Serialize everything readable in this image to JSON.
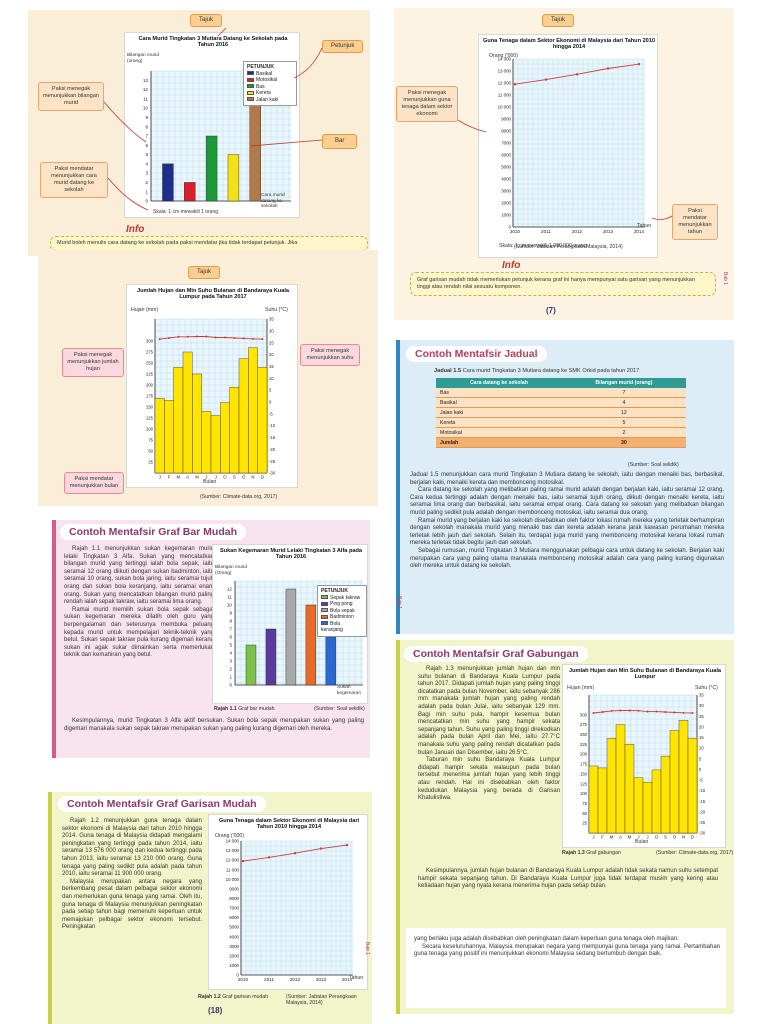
{
  "panel1": {
    "tag_top": "Tajuk",
    "tag_petunjuk": "Petunjuk",
    "tag_bar": "Bar",
    "tag_paksi_y": "Paksi menegak menunjukkan bilangan murid",
    "tag_paksi_x": "Paksi mendatar menunjukkan cara murid datang ke sekolah",
    "info_logo": "Info",
    "info_text": "Murid boleh menulis cara datang ke sekolah pada paksi mendatar jika tidak terdapat petunjuk. Jika",
    "chart_data": {
      "type": "bar",
      "title": "Cara Murid Tingkatan 3 Mutiara Datang ke Sekolah pada Tahun 2016",
      "ylabel": "Bilangan murid (orang)",
      "xlabel": "Cara murid datang ke sekolah",
      "ylim": [
        0,
        14
      ],
      "yticks": [
        "0",
        "1",
        "2",
        "3",
        "4",
        "5",
        "6",
        "7",
        "8",
        "9",
        "10",
        "11",
        "12",
        "13"
      ],
      "legend_title": "PETUNJUK",
      "categories": [
        "Basikal",
        "Motosikal",
        "Bas",
        "Kereta",
        "Jalan kaki"
      ],
      "values": [
        4,
        2,
        7,
        5,
        12
      ],
      "colors": [
        "#1d2f8a",
        "#d8202a",
        "#1f9a3a",
        "#f2e01a",
        "#b07a4a"
      ],
      "scale": "Skala: 1 cm mewakili 1 orang"
    }
  },
  "panel2": {
    "tag_top": "Tajuk",
    "tag_paksi_y": "Paksi menegak menunjukkan guna tenaga dalam sektor ekonomi",
    "tag_paksi_x": "Paksi mendatar menunjukkan tahun",
    "source": "(Sumber: Jabatan Perangkaan Malaysia, 2014)",
    "info_logo": "Info",
    "info_text": "Graf garisan mudah tidak memerlukan petunjuk kerana graf ini hanya mempunyai satu garisan yang menunjukkan tinggi atau rendah nilai sesuatu komponen.",
    "page_number": "7",
    "bab": "Bab 1",
    "chart_data": {
      "type": "line",
      "title": "Guna Tenaga dalam Sektor Ekonomi di Malaysia dari Tahun 2010 hingga 2014",
      "ylabel": "Orang ('000)",
      "xlabel": "Tahun",
      "x": [
        "2010",
        "2011",
        "2012",
        "2013",
        "2014"
      ],
      "values": [
        11900,
        12284,
        12723,
        13210,
        13576
      ],
      "ylim": [
        0,
        14000
      ],
      "yticks": [
        "0",
        "1000",
        "2000",
        "3000",
        "4000",
        "5000",
        "6000",
        "7000",
        "8000",
        "9000",
        "10 000",
        "11 000",
        "12 000",
        "13 000",
        "14 000"
      ],
      "scale": "Skala: 1 cm mewakili 1 000 000 orang"
    }
  },
  "panel3": {
    "tag_top": "Tajuk",
    "tag_left": "Paksi menegak menunjukkan jumlah hujan",
    "tag_right": "Paksi menegak menunjukkan suhu",
    "tag_bottom": "Paksi mendatar menunjukkan bulan",
    "source": "(Sumber: Climate-data.org, 2017)",
    "chart_data": {
      "type": "bar",
      "title": "Jumlah Hujan dan Min Suhu Bulanan di Bandaraya Kuala Lumpur pada Tahun 2017",
      "ylabel": "Hujan (mm)",
      "y2label": "Suhu (°C)",
      "xlabel": "Bulan",
      "categories": [
        "J",
        "F",
        "M",
        "A",
        "M",
        "J",
        "J",
        "O",
        "S",
        "O",
        "N",
        "D"
      ],
      "rain": [
        170,
        165,
        240,
        275,
        225,
        140,
        130,
        160,
        195,
        260,
        285,
        240
      ],
      "temperature": [
        26.5,
        27.0,
        27.5,
        27.5,
        27.6,
        27.6,
        27.2,
        27.2,
        27.0,
        26.8,
        26.6,
        26.5
      ],
      "ylim": [
        0,
        350
      ],
      "y2lim": [
        -30,
        35
      ],
      "yticks": [
        "25",
        "50",
        "75",
        "100",
        "125",
        "150",
        "175",
        "200",
        "225",
        "250",
        "275",
        "300"
      ],
      "y2ticks": [
        "35",
        "30",
        "25",
        "20",
        "15",
        "10",
        "5",
        "0",
        "-5",
        "-10",
        "-15",
        "-20",
        "-25",
        "-30"
      ]
    }
  },
  "panel4": {
    "heading": "Contoh Mentafsir Jadual",
    "table_title_label": "Jadual 1.5",
    "table_title": "Cara murid Tingkatan 3 Mutiara datang ke SMK Orkid pada tahun 2017",
    "col1": "Cara datang ke sekolah",
    "col2": "Bilangan murid (orang)",
    "rows": [
      {
        "a": "Bas",
        "b": "7"
      },
      {
        "a": "Basikal",
        "b": "4"
      },
      {
        "a": "Jalan kaki",
        "b": "12"
      },
      {
        "a": "Kereta",
        "b": "5"
      },
      {
        "a": "Motosikal",
        "b": "2"
      }
    ],
    "total_label": "Jumlah",
    "total_value": "30",
    "source": "(Sumber: Soal selidik)",
    "paragraphs": [
      "Jadual 1.5 menunjukkan cara murid Tingkatan 3 Mutiara datang ke sekolah, iaitu dengan menaiki bas, berbasikal, berjalan kaki, menaiki kereta dan membonceng motosikal.",
      "Cara datang ke sekolah yang melibatkan paling ramai murid adalah dengan berjalan kaki, iaitu seramai 12 orang. Cara kedua tertinggi adalah dengan menaiki bas, iaitu seramai tujuh orang, diikuti dengan menaiki kereta, iaitu seramai lima orang dan berbasikal, iaitu seramai empat orang. Cara datang ke sekolah yang melibatkan bilangan murid paling sedikit pula adalah dengan membonceng motosikal, iaitu seramai dua orang.",
      "Ramai murid yang berjalan kaki ke sekolah disebabkan oleh faktor lokasi rumah mereka yang terletak berhampiran dengan sekolah manakala murid yang menaiki bas dan kereta adalah kerana jarak kawasan perumahan mereka terletak lebih jauh dari sekolah. Selain itu, terdapat juga murid yang membonceng motosikal kerana lokasi rumah mereka terletak tidak begitu jauh dari sekolah.",
      "Sebagai rumusan, murid Tingkatan 3 Mutiara menggunakan pelbagai cara untuk datang ke sekolah. Berjalan kaki merupakan cara yang paling utama manakala membonceng motosikal adalah cara yang paling kurang digunakan oleh mereka untuk datang ke sekolah."
    ],
    "bab": "Bab 1"
  },
  "panel5": {
    "heading": "Contoh Mentafsir Graf Bar Mudah",
    "paragraphs": [
      "Rajah 1.1 menunjukkan sukan kegemaran murid lelaki Tingkatan 3 Alfa. Sukan yang mencatatkan bilangan murid yang tertinggi ialah bola sepak, iaitu seramai 12 orang diikuti dengan sukan badminton, iaitu seramai 10 orang, sukan bola jaring, iaitu seramai tujuh orang dan sukan bola keranjang, iaitu seramai enam orang. Sukan yang mencatatkan bilangan murid paling rendah ialah sepak takraw, iaitu seramai lima orang.",
      "Ramai murid memilih sukan bola sepak sebagai sukan kegemaran mereka dilatih oleh guru yang berpengalaman dan seterusnya membuka peluang kepada murid untuk mempelajari teknik-teknik yang betul. Sukan sepak takraw pula kurang digemari kerana sukan ini agak sukar dimainkan serta memerlukan teknik dan kemahiran yang betul.",
      "Kesimpulannya, murid Tingkatan 3 Alfa aktif bersukan. Sukan bola sepak merupakan sukan yang paling digemari manakala sukan sepak takraw merupakan sukan yang paling kurang digemari oleh mereka."
    ],
    "figure_label": "Rajah 1.1",
    "figure_caption": "Graf bar mudah",
    "source": "(Sumber: Soal selidik)",
    "chart_data": {
      "type": "bar",
      "title": "Sukan Kegemaran Murid Lelaki Tingkatan 3 Alfa pada Tahun 2016",
      "ylabel": "Bilangan murid (Orang)",
      "xlabel": "Sukan kegemaran",
      "legend_title": "PETUNJUK",
      "categories": [
        "Sepak takraw",
        "Ping pong",
        "Bola sepak",
        "Badminton",
        "Bola keranjang"
      ],
      "values": [
        5,
        7,
        12,
        10,
        6
      ],
      "colors": [
        "#7cc04a",
        "#5a3a9a",
        "#a8a8a8",
        "#e66a2a",
        "#2a6ad0"
      ],
      "ylim": [
        0,
        13
      ],
      "yticks": [
        "0",
        "1",
        "2",
        "3",
        "4",
        "5",
        "6",
        "7",
        "8",
        "9",
        "10",
        "11",
        "12"
      ]
    }
  },
  "panel6": {
    "heading": "Contoh Mentafsir Graf Gabungan",
    "paragraphs": [
      "Rajah 1.3 menunjukkan jumlah hujan dan min suhu bulanan di Bandaraya Kuala Lumpur pada tahun 2017. Didapati jumlah hujan yang paling tinggi dicatatkan pada bulan November, iaitu sebanyak 286 mm manakala jumlah hujan yang paling rendah adalah pada bulan Julai, iaitu sebanyak 129 mm. Bagi min suhu pula, hampir kesemua bulan mencatatkan min suhu yang hampir sekata sepanjang tahun. Suhu yang paling tinggi direkodkan adalah pada bulan April dan Mei, iaitu 27.7°C manakala suhu yang paling rendah dicatatkan pada bulan Januari dan Disember, iaitu 26.5°C.",
      "Taburan min suhu Bandaraya Kuala Lumpur didapati hampir sekata walaupun pada bulan tersebut menerima jumlah hujan yang lebih tinggi atau rendah. Hal ini disebabkan oleh faktor kedudukan Malaysia yang berada di Garisan Khatulistiwa.",
      "Kesimpulannya, jumlah hujan bulanan di Bandaraya Kuala Lumpur adalah tidak sekata namun suhu setempat hampir sekata sepanjang tahun. Di Bandaraya Kuala Lumpur juga tidak terdapat musim yang kering atau ketiadaan hujan yang nyata kerana menerima hujan pada setiap bulan."
    ],
    "bottom_paragraphs": [
      "yang berlaku juga adalah disebabkan oleh peningkatan dalam keperluan guna tenaga oleh majikan.",
      "Secara keseluruhannya, Malaysia merupakan negara yang mempunyai guna tenaga yang ramai. Pertambahan guna tenaga yang positif ini menunjukkan ekonomi Malaysia sedang bertumbuh dengan baik."
    ],
    "figure_label": "Rajah 1.3",
    "figure_caption": "Graf gabungan",
    "source": "(Sumber: Climate-data.org, 2017)",
    "chart_data": {
      "type": "bar",
      "title": "Jumlah Hujan dan Min Suhu Bulanan di Bandaraya Kuala Lumpur",
      "ylabel": "Hujan (mm)",
      "y2label": "Suhu (°C)",
      "xlabel": "Bulan",
      "categories": [
        "J",
        "F",
        "M",
        "A",
        "M",
        "J",
        "J",
        "O",
        "S",
        "O",
        "N",
        "D"
      ],
      "rain": [
        170,
        165,
        240,
        275,
        225,
        140,
        129,
        160,
        195,
        260,
        286,
        240
      ],
      "temperature": [
        26.5,
        27.0,
        27.5,
        27.7,
        27.7,
        27.6,
        27.2,
        27.2,
        27.0,
        26.8,
        26.6,
        26.5
      ],
      "ylim": [
        0,
        350
      ],
      "y2lim": [
        -30,
        35
      ],
      "yticks": [
        "25",
        "50",
        "75",
        "100",
        "125",
        "150",
        "175",
        "200",
        "225",
        "250",
        "275",
        "300"
      ],
      "y2ticks": [
        "35",
        "30",
        "25",
        "20",
        "15",
        "10",
        "5",
        "0",
        "-5",
        "-10",
        "-15",
        "-20",
        "-25",
        "-30"
      ]
    }
  },
  "panel7": {
    "heading": "Contoh Mentafsir Graf Garisan Mudah",
    "paragraphs": [
      "Rajah 1.2 menunjukkan guna tenaga dalam sektor ekonomi di Malaysia dari tahun 2010 hingga 2014. Guna tenaga di Malaysia didapati mengalami peningkatan yang tertinggi pada tahun 2014, iaitu seramai 13 576 000 orang dan kedua tertinggi pada tahun 2013, iaitu seramai 13 210 000 orang. Guna tenaga yang paling sedikit pula adalah pada tahun 2010, iaitu seramai 11 900 000 orang.",
      "Malaysia merupakan antara negara yang berkembang pesat dalam pelbagai sektor ekonomi dan memerlukan guna tenaga yang ramai. Oleh itu, guna tenaga di Malaysia menunjukkan peningkatan pada setiap tahun bagi memenuhi keperluan untuk memajukan pelbagai sektor ekonomi tersebut. Peningkatan"
    ],
    "figure_label": "Rajah 1.2",
    "figure_caption": "Graf garisan mudah",
    "source": "(Sumber: Jabatan Perangkaan Malaysia, 2014)",
    "page_number": "18",
    "bab": "Bab 1",
    "chart_data": {
      "type": "line",
      "title": "Guna Tenaga dalam Sektor Ekonomi di Malaysia dari Tahun 2010 hingga 2014",
      "ylabel": "Orang ('000)",
      "xlabel": "Tahun",
      "x": [
        "2010",
        "2011",
        "2012",
        "2013",
        "2014"
      ],
      "values": [
        11900,
        12284,
        12723,
        13210,
        13576
      ],
      "ylim": [
        0,
        14000
      ],
      "yticks": [
        "0",
        "1000",
        "2000",
        "3000",
        "4000",
        "5000",
        "6000",
        "7000",
        "8000",
        "9000",
        "10 000",
        "11 000",
        "12 000",
        "13 000",
        "14 000"
      ]
    }
  }
}
